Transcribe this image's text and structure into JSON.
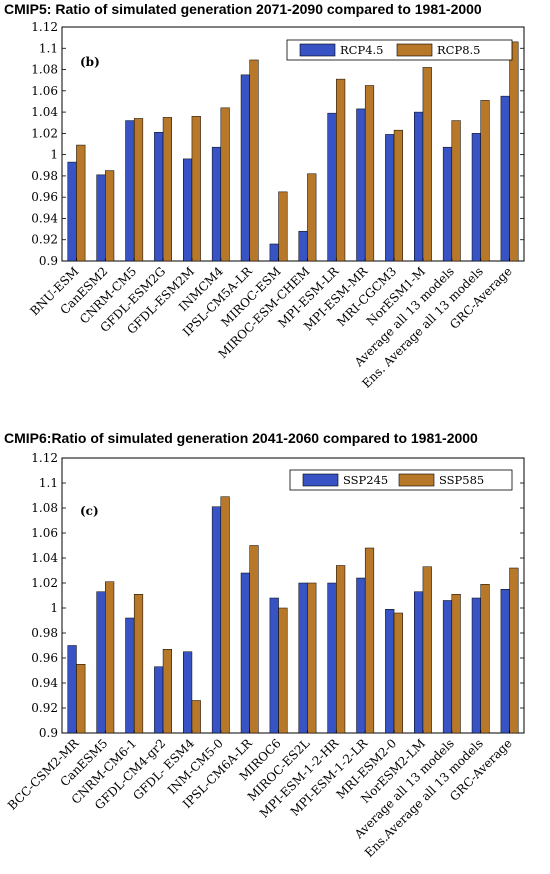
{
  "chart_data": [
    {
      "type": "bar",
      "title": "CMIP5: Ratio of simulated generation 2071-2090 compared to 1981-2000",
      "panel_label": "(b)",
      "xlabel": "",
      "ylabel": "",
      "ylim": [
        0.9,
        1.12
      ],
      "yticks": [
        0.9,
        0.92,
        0.94,
        0.96,
        0.98,
        1,
        1.02,
        1.04,
        1.06,
        1.08,
        1.1,
        1.12
      ],
      "ytick_labels": [
        "0.9",
        "0.92",
        "0.94",
        "0.96",
        "0.98",
        "1",
        "1.02",
        "1.04",
        "1.06",
        "1.08",
        "1.1",
        "1.12"
      ],
      "legend_position": "top-right",
      "grid": false,
      "categories": [
        "BNU-ESM",
        "CanESM2",
        "CNRM-CM5",
        "GFDL-ESM2G",
        "GFDL-ESM2M",
        "INMCM4",
        "IPSL-CM5A-LR",
        "MIROC-ESM",
        "MIROC-ESM-CHEM",
        "MPI-ESM-LR",
        "MPI-ESM-MR",
        "MRI-CGCM3",
        "NorESM1-M",
        "Average all 13 models",
        "Ens. Average all 13 models",
        "GRC-Average"
      ],
      "series": [
        {
          "name": "RCP4.5",
          "color": "#3753c4",
          "values": [
            0.993,
            0.981,
            1.032,
            1.021,
            0.996,
            1.007,
            1.075,
            0.916,
            0.928,
            1.039,
            1.043,
            1.019,
            1.04,
            1.007,
            1.02,
            1.055
          ]
        },
        {
          "name": "RCP8.5",
          "color": "#b8782a",
          "values": [
            1.009,
            0.985,
            1.034,
            1.035,
            1.036,
            1.044,
            1.089,
            0.965,
            0.982,
            1.071,
            1.065,
            1.023,
            1.082,
            1.032,
            1.051,
            1.106
          ]
        }
      ]
    },
    {
      "type": "bar",
      "title": "CMIP6:Ratio of simulated generation 2041-2060 compared to 1981-2000",
      "panel_label": "(c)",
      "xlabel": "",
      "ylabel": "",
      "ylim": [
        0.9,
        1.12
      ],
      "yticks": [
        0.9,
        0.92,
        0.94,
        0.96,
        0.98,
        1,
        1.02,
        1.04,
        1.06,
        1.08,
        1.1,
        1.12
      ],
      "ytick_labels": [
        "0.9",
        "0.92",
        "0.94",
        "0.96",
        "0.98",
        "1",
        "1.02",
        "1.04",
        "1.06",
        "1.08",
        "1.1",
        "1.12"
      ],
      "legend_position": "top-right",
      "grid": false,
      "categories": [
        "BCC-CSM2-MR",
        "CanESM5",
        "CNRM-CM6-1",
        "GFDL-CM4-gr2",
        "GFDL- ESM4",
        "INM-CM5-0",
        "IPSL-CM6A-LR",
        "MIROC6",
        "MIROC-ES2L",
        "MPI-ESM-1-2-HR",
        "MPI-ESM-1-2-LR",
        "MRI-ESM2-0",
        "NorESM2-LM",
        "Average all 13 models",
        "Ens.Average all 13 models",
        "GRC-Average"
      ],
      "series": [
        {
          "name": "SSP245",
          "color": "#3753c4",
          "values": [
            0.97,
            1.013,
            0.992,
            0.953,
            0.965,
            1.081,
            1.028,
            1.008,
            1.02,
            1.02,
            1.024,
            0.999,
            1.013,
            1.006,
            1.008,
            1.015
          ]
        },
        {
          "name": "SSP585",
          "color": "#b8782a",
          "values": [
            0.955,
            1.021,
            1.011,
            0.967,
            0.926,
            1.089,
            1.05,
            1.0,
            1.02,
            1.034,
            1.048,
            0.996,
            1.033,
            1.011,
            1.019,
            1.032
          ]
        }
      ]
    }
  ]
}
